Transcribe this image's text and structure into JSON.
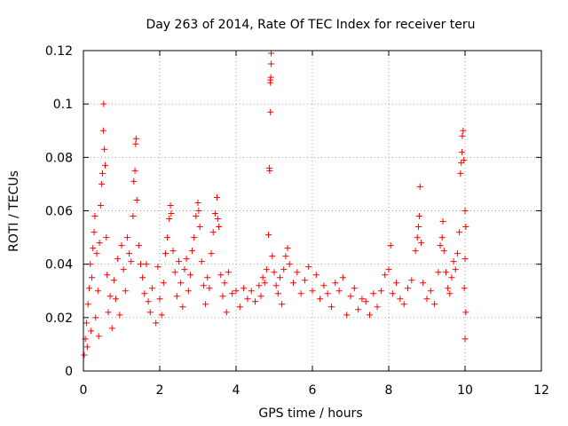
{
  "chart_data": {
    "type": "scatter",
    "title": "Day 263 of 2014, Rate Of TEC Index for receiver teru",
    "xlabel": "GPS time / hours",
    "ylabel": "ROTI / TECUs",
    "xlim": [
      0,
      12
    ],
    "ylim": [
      0,
      0.12
    ],
    "xticks": [
      0,
      2,
      4,
      6,
      8,
      10,
      12
    ],
    "xtick_labels": [
      "0",
      "2",
      "4",
      "6",
      "8",
      "10",
      "12"
    ],
    "yticks": [
      0,
      0.02,
      0.04,
      0.06,
      0.08,
      0.1,
      0.12
    ],
    "ytick_labels": [
      "0",
      "0.02",
      "0.04",
      "0.06",
      "0.08",
      "0.1",
      "0.12"
    ],
    "grid": true,
    "marker": "plus",
    "series": [
      {
        "name": "ROTI",
        "color": "#ff0000",
        "points": [
          [
            0.02,
            0.006
          ],
          [
            0.05,
            0.012
          ],
          [
            0.08,
            0.018
          ],
          [
            0.1,
            0.009
          ],
          [
            0.12,
            0.025
          ],
          [
            0.15,
            0.031
          ],
          [
            0.18,
            0.04
          ],
          [
            0.2,
            0.015
          ],
          [
            0.22,
            0.035
          ],
          [
            0.25,
            0.046
          ],
          [
            0.28,
            0.052
          ],
          [
            0.3,
            0.058
          ],
          [
            0.32,
            0.02
          ],
          [
            0.35,
            0.044
          ],
          [
            0.38,
            0.03
          ],
          [
            0.4,
            0.013
          ],
          [
            0.42,
            0.048
          ],
          [
            0.45,
            0.062
          ],
          [
            0.48,
            0.07
          ],
          [
            0.5,
            0.074
          ],
          [
            0.52,
            0.09
          ],
          [
            0.53,
            0.1
          ],
          [
            0.55,
            0.083
          ],
          [
            0.57,
            0.077
          ],
          [
            0.6,
            0.05
          ],
          [
            0.62,
            0.036
          ],
          [
            0.65,
            0.022
          ],
          [
            0.7,
            0.028
          ],
          [
            0.75,
            0.016
          ],
          [
            0.8,
            0.034
          ],
          [
            0.85,
            0.027
          ],
          [
            0.9,
            0.042
          ],
          [
            0.95,
            0.021
          ],
          [
            1.0,
            0.047
          ],
          [
            1.05,
            0.038
          ],
          [
            1.1,
            0.03
          ],
          [
            1.15,
            0.05
          ],
          [
            1.2,
            0.044
          ],
          [
            1.25,
            0.041
          ],
          [
            1.3,
            0.058
          ],
          [
            1.32,
            0.071
          ],
          [
            1.35,
            0.075
          ],
          [
            1.37,
            0.085
          ],
          [
            1.38,
            0.087
          ],
          [
            1.4,
            0.064
          ],
          [
            1.45,
            0.047
          ],
          [
            1.5,
            0.04
          ],
          [
            1.55,
            0.035
          ],
          [
            1.6,
            0.029
          ],
          [
            1.65,
            0.04
          ],
          [
            1.7,
            0.026
          ],
          [
            1.75,
            0.022
          ],
          [
            1.8,
            0.031
          ],
          [
            1.9,
            0.018
          ],
          [
            1.95,
            0.039
          ],
          [
            2.0,
            0.027
          ],
          [
            2.05,
            0.021
          ],
          [
            2.1,
            0.033
          ],
          [
            2.15,
            0.044
          ],
          [
            2.2,
            0.05
          ],
          [
            2.25,
            0.057
          ],
          [
            2.28,
            0.062
          ],
          [
            2.3,
            0.059
          ],
          [
            2.35,
            0.045
          ],
          [
            2.4,
            0.037
          ],
          [
            2.45,
            0.028
          ],
          [
            2.5,
            0.041
          ],
          [
            2.55,
            0.033
          ],
          [
            2.6,
            0.024
          ],
          [
            2.65,
            0.038
          ],
          [
            2.7,
            0.042
          ],
          [
            2.75,
            0.03
          ],
          [
            2.8,
            0.036
          ],
          [
            2.85,
            0.045
          ],
          [
            2.9,
            0.05
          ],
          [
            2.95,
            0.058
          ],
          [
            3.0,
            0.063
          ],
          [
            3.02,
            0.06
          ],
          [
            3.05,
            0.054
          ],
          [
            3.1,
            0.041
          ],
          [
            3.15,
            0.032
          ],
          [
            3.2,
            0.025
          ],
          [
            3.25,
            0.035
          ],
          [
            3.3,
            0.031
          ],
          [
            3.35,
            0.044
          ],
          [
            3.4,
            0.052
          ],
          [
            3.45,
            0.059
          ],
          [
            3.5,
            0.065
          ],
          [
            3.52,
            0.057
          ],
          [
            3.55,
            0.054
          ],
          [
            3.6,
            0.036
          ],
          [
            3.65,
            0.028
          ],
          [
            3.7,
            0.033
          ],
          [
            3.75,
            0.022
          ],
          [
            3.8,
            0.037
          ],
          [
            3.9,
            0.029
          ],
          [
            4.0,
            0.03
          ],
          [
            4.1,
            0.024
          ],
          [
            4.2,
            0.031
          ],
          [
            4.3,
            0.027
          ],
          [
            4.4,
            0.03
          ],
          [
            4.5,
            0.026
          ],
          [
            4.6,
            0.032
          ],
          [
            4.65,
            0.028
          ],
          [
            4.7,
            0.035
          ],
          [
            4.75,
            0.033
          ],
          [
            4.8,
            0.038
          ],
          [
            4.85,
            0.051
          ],
          [
            4.87,
            0.076
          ],
          [
            4.88,
            0.075
          ],
          [
            4.9,
            0.097
          ],
          [
            4.9,
            0.108
          ],
          [
            4.9,
            0.109
          ],
          [
            4.91,
            0.11
          ],
          [
            4.92,
            0.115
          ],
          [
            4.92,
            0.119
          ],
          [
            4.95,
            0.043
          ],
          [
            5.0,
            0.037
          ],
          [
            5.05,
            0.032
          ],
          [
            5.1,
            0.029
          ],
          [
            5.15,
            0.035
          ],
          [
            5.2,
            0.025
          ],
          [
            5.25,
            0.038
          ],
          [
            5.3,
            0.043
          ],
          [
            5.35,
            0.046
          ],
          [
            5.4,
            0.04
          ],
          [
            5.5,
            0.033
          ],
          [
            5.6,
            0.037
          ],
          [
            5.7,
            0.029
          ],
          [
            5.8,
            0.034
          ],
          [
            5.9,
            0.039
          ],
          [
            6.0,
            0.03
          ],
          [
            6.1,
            0.036
          ],
          [
            6.2,
            0.027
          ],
          [
            6.3,
            0.032
          ],
          [
            6.4,
            0.029
          ],
          [
            6.5,
            0.024
          ],
          [
            6.6,
            0.033
          ],
          [
            6.7,
            0.03
          ],
          [
            6.8,
            0.035
          ],
          [
            6.9,
            0.021
          ],
          [
            7.0,
            0.028
          ],
          [
            7.1,
            0.031
          ],
          [
            7.2,
            0.023
          ],
          [
            7.3,
            0.027
          ],
          [
            7.4,
            0.026
          ],
          [
            7.5,
            0.021
          ],
          [
            7.6,
            0.029
          ],
          [
            7.7,
            0.024
          ],
          [
            7.8,
            0.03
          ],
          [
            7.9,
            0.036
          ],
          [
            8.0,
            0.038
          ],
          [
            8.05,
            0.047
          ],
          [
            8.1,
            0.029
          ],
          [
            8.2,
            0.033
          ],
          [
            8.3,
            0.027
          ],
          [
            8.4,
            0.025
          ],
          [
            8.5,
            0.031
          ],
          [
            8.6,
            0.034
          ],
          [
            8.7,
            0.045
          ],
          [
            8.75,
            0.05
          ],
          [
            8.78,
            0.054
          ],
          [
            8.8,
            0.058
          ],
          [
            8.82,
            0.069
          ],
          [
            8.85,
            0.048
          ],
          [
            8.9,
            0.033
          ],
          [
            9.0,
            0.027
          ],
          [
            9.1,
            0.03
          ],
          [
            9.2,
            0.025
          ],
          [
            9.3,
            0.037
          ],
          [
            9.35,
            0.047
          ],
          [
            9.4,
            0.05
          ],
          [
            9.42,
            0.056
          ],
          [
            9.45,
            0.045
          ],
          [
            9.5,
            0.037
          ],
          [
            9.55,
            0.031
          ],
          [
            9.6,
            0.029
          ],
          [
            9.65,
            0.035
          ],
          [
            9.7,
            0.041
          ],
          [
            9.75,
            0.038
          ],
          [
            9.8,
            0.044
          ],
          [
            9.85,
            0.052
          ],
          [
            9.88,
            0.074
          ],
          [
            9.9,
            0.078
          ],
          [
            9.92,
            0.082
          ],
          [
            9.93,
            0.088
          ],
          [
            9.95,
            0.09
          ],
          [
            9.97,
            0.079
          ],
          [
            10.0,
            0.06
          ],
          [
            10.02,
            0.054
          ],
          [
            10.0,
            0.042
          ],
          [
            9.98,
            0.031
          ],
          [
            10.02,
            0.022
          ],
          [
            10.0,
            0.012
          ]
        ]
      }
    ]
  }
}
